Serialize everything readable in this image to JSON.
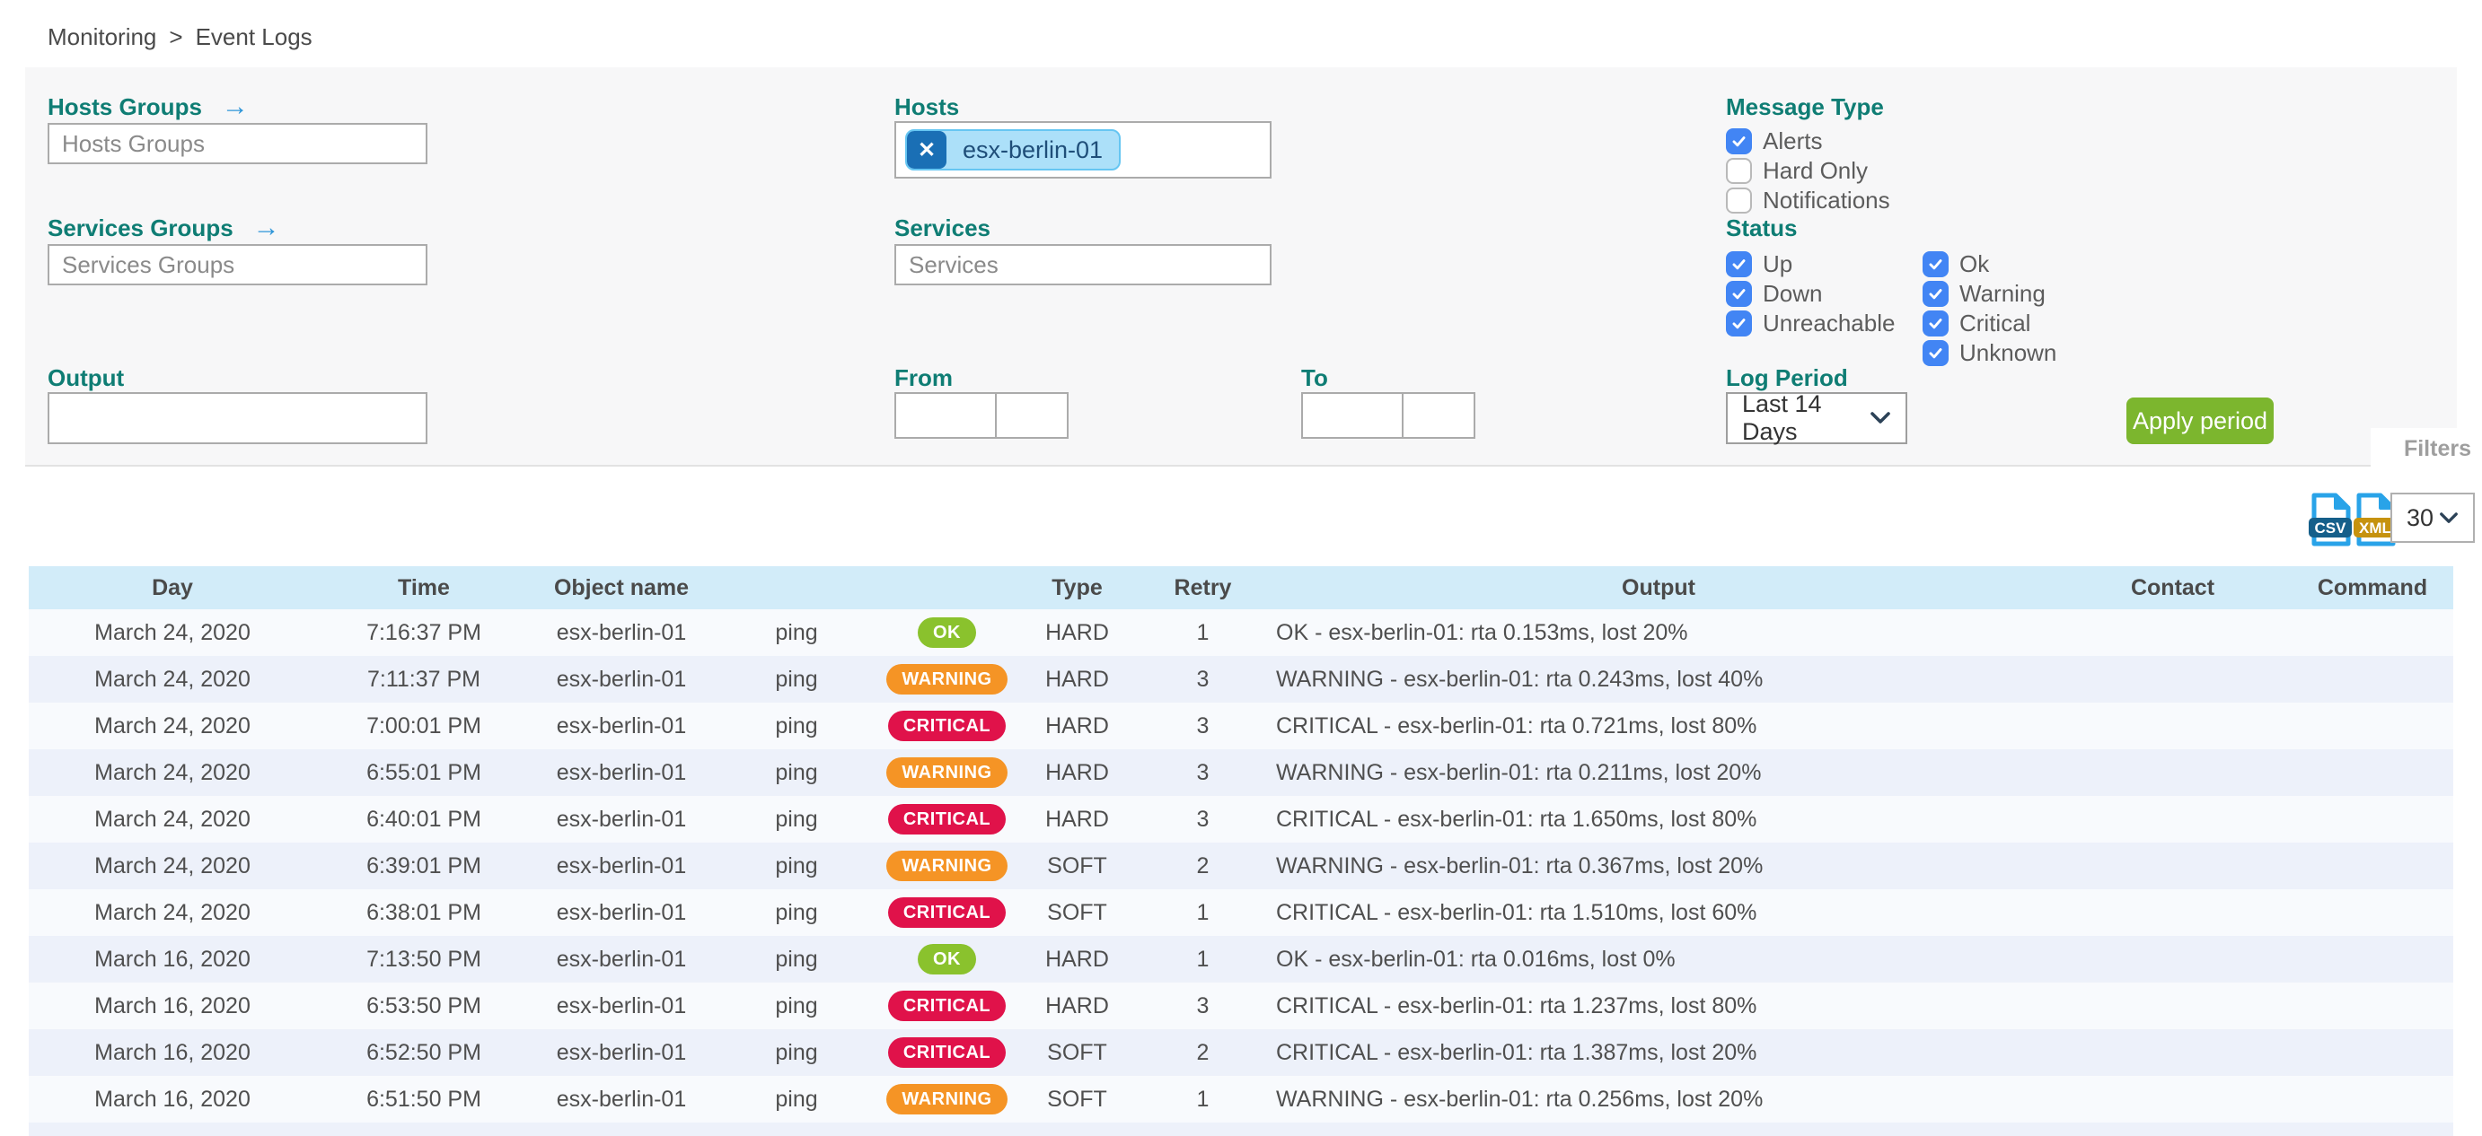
{
  "breadcrumb": {
    "items": [
      "Monitoring",
      "Event Logs"
    ],
    "separator": ">"
  },
  "filters": {
    "panel_tab_label": "Filters",
    "hosts_groups": {
      "label": "Hosts Groups",
      "placeholder": "Hosts Groups"
    },
    "services_groups": {
      "label": "Services Groups",
      "placeholder": "Services Groups"
    },
    "hosts": {
      "label": "Hosts",
      "chips": [
        "esx-berlin-01"
      ]
    },
    "services": {
      "label": "Services",
      "placeholder": "Services"
    },
    "output": {
      "label": "Output",
      "value": ""
    },
    "from": {
      "label": "From",
      "date_value": "",
      "time_value": ""
    },
    "to": {
      "label": "To",
      "date_value": "",
      "time_value": ""
    },
    "message_type": {
      "label": "Message Type",
      "options": [
        {
          "label": "Alerts",
          "checked": true
        },
        {
          "label": "Hard Only",
          "checked": false
        },
        {
          "label": "Notifications",
          "checked": false
        }
      ]
    },
    "status": {
      "label": "Status",
      "col1": [
        {
          "label": "Up",
          "checked": true
        },
        {
          "label": "Down",
          "checked": true
        },
        {
          "label": "Unreachable",
          "checked": true
        }
      ],
      "col2": [
        {
          "label": "Ok",
          "checked": true
        },
        {
          "label": "Warning",
          "checked": true
        },
        {
          "label": "Critical",
          "checked": true
        },
        {
          "label": "Unknown",
          "checked": true
        }
      ]
    },
    "log_period": {
      "label": "Log Period",
      "selected": "Last 14 Days"
    },
    "apply_button_label": "Apply period"
  },
  "toolbar": {
    "export_csv_label": "CSV",
    "export_xml_label": "XML",
    "page_size_selected": "30"
  },
  "table": {
    "columns": [
      {
        "key": "day",
        "label": "Day"
      },
      {
        "key": "time",
        "label": "Time"
      },
      {
        "key": "object",
        "label": "Object name"
      },
      {
        "key": "service",
        "label": ""
      },
      {
        "key": "status",
        "label": ""
      },
      {
        "key": "type",
        "label": "Type"
      },
      {
        "key": "retry",
        "label": "Retry"
      },
      {
        "key": "output",
        "label": "Output"
      },
      {
        "key": "contact",
        "label": "Contact"
      },
      {
        "key": "command",
        "label": "Command"
      }
    ],
    "rows": [
      {
        "day": "March 24, 2020",
        "time": "7:16:37 PM",
        "object": "esx-berlin-01",
        "service": "ping",
        "status": "OK",
        "type": "HARD",
        "retry": "1",
        "output": "OK - esx-berlin-01: rta 0.153ms, lost 20%",
        "contact": "",
        "command": ""
      },
      {
        "day": "March 24, 2020",
        "time": "7:11:37 PM",
        "object": "esx-berlin-01",
        "service": "ping",
        "status": "WARNING",
        "type": "HARD",
        "retry": "3",
        "output": "WARNING - esx-berlin-01: rta 0.243ms, lost 40%",
        "contact": "",
        "command": ""
      },
      {
        "day": "March 24, 2020",
        "time": "7:00:01 PM",
        "object": "esx-berlin-01",
        "service": "ping",
        "status": "CRITICAL",
        "type": "HARD",
        "retry": "3",
        "output": "CRITICAL - esx-berlin-01: rta 0.721ms, lost 80%",
        "contact": "",
        "command": ""
      },
      {
        "day": "March 24, 2020",
        "time": "6:55:01 PM",
        "object": "esx-berlin-01",
        "service": "ping",
        "status": "WARNING",
        "type": "HARD",
        "retry": "3",
        "output": "WARNING - esx-berlin-01: rta 0.211ms, lost 20%",
        "contact": "",
        "command": ""
      },
      {
        "day": "March 24, 2020",
        "time": "6:40:01 PM",
        "object": "esx-berlin-01",
        "service": "ping",
        "status": "CRITICAL",
        "type": "HARD",
        "retry": "3",
        "output": "CRITICAL - esx-berlin-01: rta 1.650ms, lost 80%",
        "contact": "",
        "command": ""
      },
      {
        "day": "March 24, 2020",
        "time": "6:39:01 PM",
        "object": "esx-berlin-01",
        "service": "ping",
        "status": "WARNING",
        "type": "SOFT",
        "retry": "2",
        "output": "WARNING - esx-berlin-01: rta 0.367ms, lost 20%",
        "contact": "",
        "command": ""
      },
      {
        "day": "March 24, 2020",
        "time": "6:38:01 PM",
        "object": "esx-berlin-01",
        "service": "ping",
        "status": "CRITICAL",
        "type": "SOFT",
        "retry": "1",
        "output": "CRITICAL - esx-berlin-01: rta 1.510ms, lost 60%",
        "contact": "",
        "command": ""
      },
      {
        "day": "March 16, 2020",
        "time": "7:13:50 PM",
        "object": "esx-berlin-01",
        "service": "ping",
        "status": "OK",
        "type": "HARD",
        "retry": "1",
        "output": "OK - esx-berlin-01: rta 0.016ms, lost 0%",
        "contact": "",
        "command": ""
      },
      {
        "day": "March 16, 2020",
        "time": "6:53:50 PM",
        "object": "esx-berlin-01",
        "service": "ping",
        "status": "CRITICAL",
        "type": "HARD",
        "retry": "3",
        "output": "CRITICAL - esx-berlin-01: rta 1.237ms, lost 80%",
        "contact": "",
        "command": ""
      },
      {
        "day": "March 16, 2020",
        "time": "6:52:50 PM",
        "object": "esx-berlin-01",
        "service": "ping",
        "status": "CRITICAL",
        "type": "SOFT",
        "retry": "2",
        "output": "CRITICAL - esx-berlin-01: rta 1.387ms, lost 20%",
        "contact": "",
        "command": ""
      },
      {
        "day": "March 16, 2020",
        "time": "6:51:50 PM",
        "object": "esx-berlin-01",
        "service": "ping",
        "status": "WARNING",
        "type": "SOFT",
        "retry": "1",
        "output": "WARNING - esx-berlin-01: rta 0.256ms, lost 20%",
        "contact": "",
        "command": ""
      }
    ]
  },
  "colors": {
    "accent_teal": "#0f7d74",
    "arrow_blue": "#2f96d8",
    "checkbox_blue": "#4285f4",
    "apply_green": "#7cb62e",
    "badge_ok": "#8ac22d",
    "badge_warning": "#f59425",
    "badge_critical": "#e0124a",
    "table_header_blue": "#d2ecf9",
    "row_alternate": "#edf1fa",
    "chip_background": "#ace0f9",
    "chip_x_background": "#1a6fb5",
    "csv_banner": "#155f8a",
    "xml_banner": "#c6920e"
  }
}
